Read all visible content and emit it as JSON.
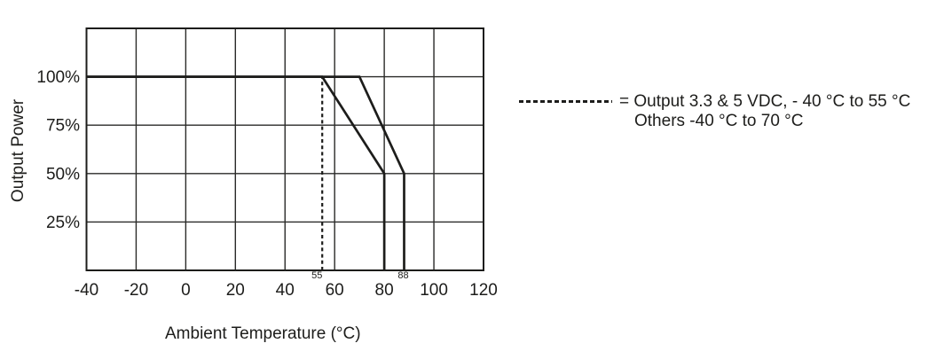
{
  "colors": {
    "ink": "#1d1d1b",
    "background": "#ffffff"
  },
  "chart_data": {
    "type": "line",
    "title": "",
    "xlabel": "Ambient Temperature (°C)",
    "ylabel": "Output Power",
    "xlim": [
      -40,
      120
    ],
    "ylim": [
      0,
      125
    ],
    "grid": true,
    "x_ticks": [
      -40,
      -20,
      0,
      20,
      40,
      60,
      80,
      100,
      120
    ],
    "y_gridlines": [
      25,
      50,
      75,
      100
    ],
    "y_ticks": [
      {
        "value": 100,
        "label": "100%"
      },
      {
        "value": 75,
        "label": "75%"
      },
      {
        "value": 50,
        "label": "50%"
      },
      {
        "value": 25,
        "label": "25%"
      }
    ],
    "annotations": [
      {
        "label": "55",
        "x": 55,
        "dx": -6
      },
      {
        "label": "88",
        "x": 88,
        "dx": -1
      }
    ],
    "series": [
      {
        "id": "output-3v3-5vdc",
        "name": "Output 3.3 & 5 VDC derating",
        "style": "solid",
        "points": [
          [
            -40,
            100
          ],
          [
            55,
            100
          ],
          [
            80,
            50
          ],
          [
            80,
            0
          ]
        ]
      },
      {
        "id": "others",
        "name": "Others derating",
        "style": "solid",
        "points": [
          [
            -40,
            100
          ],
          [
            70,
            100
          ],
          [
            88,
            50
          ],
          [
            88,
            0
          ]
        ]
      },
      {
        "id": "threshold-55c",
        "name": "55 °C threshold marker",
        "style": "dashed",
        "points": [
          [
            55,
            0
          ],
          [
            55,
            100
          ]
        ]
      }
    ],
    "legend": {
      "position": "right",
      "symbol": "dashed-line",
      "line1": "= Output 3.3 & 5 VDC, - 40 °C to 55 °C",
      "line2": "Others -40 °C to 70 °C"
    }
  }
}
